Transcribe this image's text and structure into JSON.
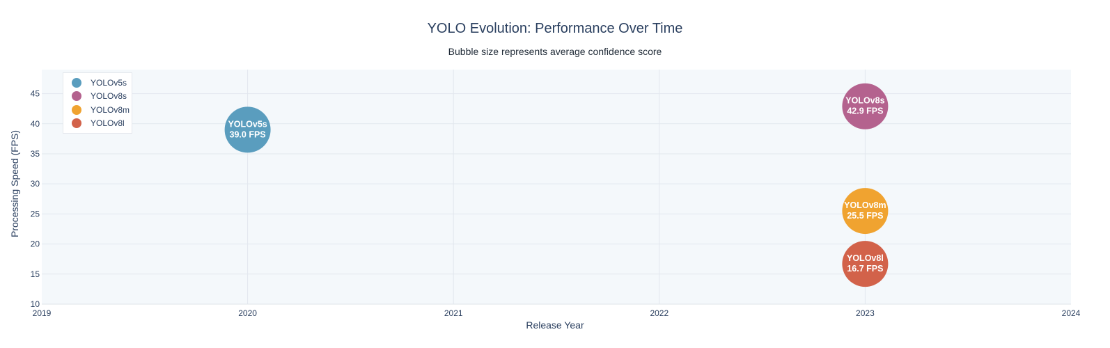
{
  "chart_data": {
    "type": "scatter",
    "title": "YOLO Evolution: Performance Over Time",
    "subtitle": "Bubble size represents average confidence score",
    "xlabel": "Release Year",
    "ylabel": "Processing Speed (FPS)",
    "xlim": [
      2019,
      2024
    ],
    "ylim": [
      10,
      49
    ],
    "x_ticks": [
      "2019",
      "2020",
      "2021",
      "2022",
      "2023",
      "2024"
    ],
    "y_ticks": [
      "10",
      "15",
      "20",
      "25",
      "30",
      "35",
      "40",
      "45"
    ],
    "grid": true,
    "legend_position": "top-left",
    "series": [
      {
        "name": "YOLOv5s",
        "color": "#5a9dbe",
        "x": 2020,
        "y": 39.0,
        "label_line1": "YOLOv5s",
        "label_line2": "39.0 FPS"
      },
      {
        "name": "YOLOv8s",
        "color": "#b4628e",
        "x": 2023,
        "y": 42.9,
        "label_line1": "YOLOv8s",
        "label_line2": "42.9 FPS"
      },
      {
        "name": "YOLOv8m",
        "color": "#f0a330",
        "x": 2023,
        "y": 25.5,
        "label_line1": "YOLOv8m",
        "label_line2": "25.5 FPS"
      },
      {
        "name": "YOLOv8l",
        "color": "#d2624a",
        "x": 2023,
        "y": 16.7,
        "label_line1": "YOLOv8l",
        "label_line2": "16.7 FPS"
      }
    ]
  }
}
